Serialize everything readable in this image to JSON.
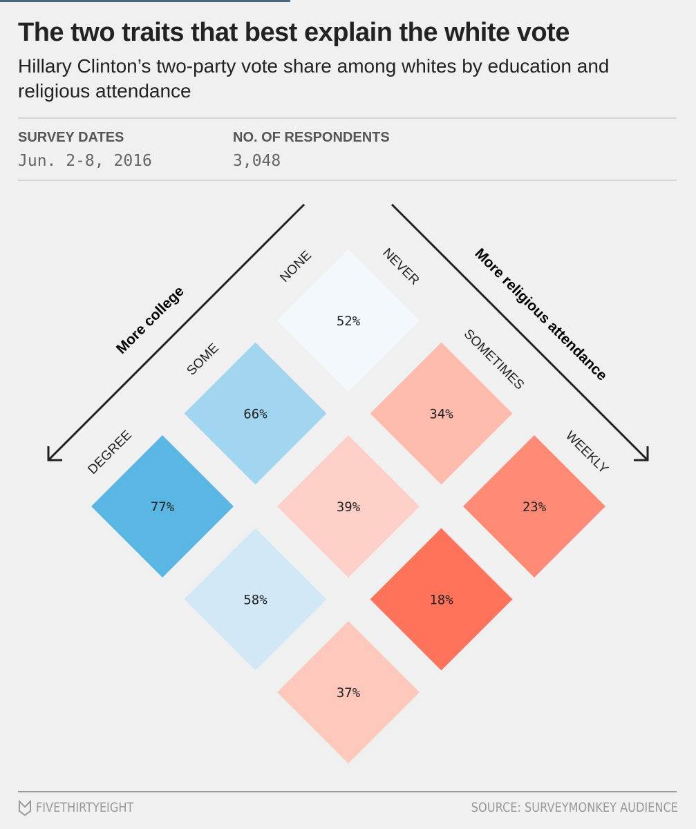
{
  "header": {
    "title": "The two traits that best explain the white vote",
    "subtitle": "Hillary Clinton’s two-party vote share among whites by education and religious attendance"
  },
  "meta": {
    "dates_label": "SURVEY DATES",
    "dates_value": "Jun. 2-8, 2016",
    "respondents_label": "NO. OF RESPONDENTS",
    "respondents_value": "3,048"
  },
  "chart_data": {
    "type": "heatmap",
    "title": "The two traits that best explain the white vote",
    "education_axis_label": "More college",
    "religion_axis_label": "More religious attendance",
    "education_levels": [
      "NONE",
      "SOME",
      "DEGREE"
    ],
    "religion_levels": [
      "NEVER",
      "SOMETIMES",
      "WEEKLY"
    ],
    "values": [
      [
        52,
        34,
        23
      ],
      [
        66,
        39,
        18
      ],
      [
        77,
        58,
        37
      ]
    ],
    "colors": [
      [
        "#f3f8fc",
        "#ffbcae",
        "#ff8a75"
      ],
      [
        "#a2d5f0",
        "#ffd0c7",
        "#ff735b"
      ],
      [
        "#5ab6e3",
        "#d1e9f7",
        "#ffc8bd"
      ]
    ],
    "unit": "%"
  },
  "footer": {
    "brand": "FIVETHIRTYEIGHT",
    "source": "SOURCE: SURVEYMONKEY AUDIENCE"
  }
}
